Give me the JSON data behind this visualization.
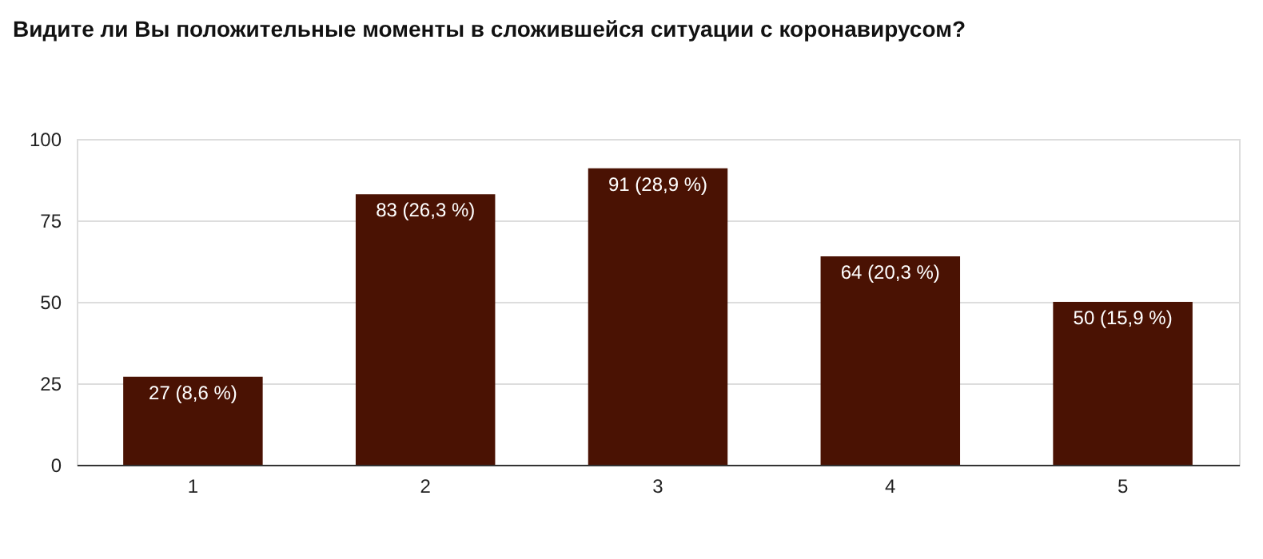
{
  "chart_data": {
    "type": "bar",
    "title": "Видите ли Вы положительные моменты в сложившейся ситуации с коронавирусом?",
    "categories": [
      "1",
      "2",
      "3",
      "4",
      "5"
    ],
    "values": [
      27,
      83,
      91,
      64,
      50
    ],
    "value_labels": [
      "27 (8,6 %)",
      "83 (26,3 %)",
      "91 (28,9 %)",
      "64 (20,3 %)",
      "50 (15,9 %)"
    ],
    "color": "#4a1203",
    "ylim": [
      0,
      100
    ],
    "yticks": [
      0,
      25,
      50,
      75,
      100
    ],
    "grid": "y"
  }
}
